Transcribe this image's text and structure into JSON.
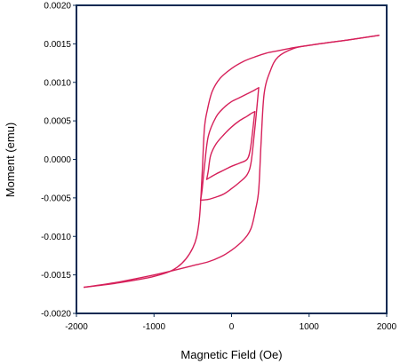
{
  "chart_data": {
    "type": "line",
    "xlabel": "Magnetic Field (Oe)",
    "ylabel": "Moment (emu)",
    "xlim": [
      -2000,
      2000
    ],
    "ylim": [
      -0.002,
      0.002
    ],
    "grid": false,
    "legend": "none",
    "line_color": "#d6205a",
    "frame_color": "#0b2a52",
    "x_ticks": [
      {
        "value": -2000,
        "label": "-2000"
      },
      {
        "value": -1000,
        "label": "-1000"
      },
      {
        "value": 0,
        "label": "0"
      },
      {
        "value": 1000,
        "label": "1000"
      },
      {
        "value": 2000,
        "label": "2000"
      }
    ],
    "y_ticks": [
      {
        "value": 0.002,
        "label": "0.0020"
      },
      {
        "value": 0.0015,
        "label": "0.0015"
      },
      {
        "value": 0.001,
        "label": "0.0010"
      },
      {
        "value": 0.0005,
        "label": "0.0005"
      },
      {
        "value": 0.0,
        "label": "0.0000"
      },
      {
        "value": -0.0005,
        "label": "-0.0005"
      },
      {
        "value": -0.001,
        "label": "-0.0010"
      },
      {
        "value": -0.0015,
        "label": "-0.0015"
      },
      {
        "value": -0.002,
        "label": "-0.0020"
      }
    ],
    "series": [
      {
        "x": [
          -1900,
          -1500,
          -1000,
          -700,
          -500,
          -420,
          -380,
          -350,
          -310,
          -250,
          -150,
          0,
          150,
          300,
          450,
          600,
          800,
          1000,
          1200,
          1500,
          1900
        ],
        "y": [
          -0.00166,
          -0.00161,
          -0.00152,
          -0.0014,
          -0.00115,
          -0.00082,
          -0.0002,
          0.0004,
          0.00065,
          0.00088,
          0.00105,
          0.00118,
          0.00127,
          0.00133,
          0.00138,
          0.00141,
          0.00145,
          0.00148,
          0.00151,
          0.00155,
          0.00161
        ]
      },
      {
        "x": [
          1900,
          1500,
          1200,
          1000,
          800,
          600,
          500,
          420,
          380,
          350,
          310,
          250,
          150,
          0,
          -150,
          -300,
          -500,
          -700,
          -1000,
          -1500,
          -1900
        ],
        "y": [
          0.00161,
          0.00155,
          0.00151,
          0.00148,
          0.00144,
          0.00133,
          0.00115,
          0.00085,
          0.0002,
          -0.0004,
          -0.00065,
          -0.0009,
          -0.00105,
          -0.00118,
          -0.00127,
          -0.00133,
          -0.00138,
          -0.00143,
          -0.0015,
          -0.0016,
          -0.00166
        ]
      },
      {
        "x": [
          -400,
          -380,
          -350,
          -300,
          -200,
          -100,
          0,
          100,
          200,
          280,
          330,
          350
        ],
        "y": [
          -0.00053,
          -0.0004,
          -0.0001,
          0.0003,
          0.00055,
          0.00067,
          0.00075,
          0.0008,
          0.00085,
          0.00089,
          0.00092,
          0.00093
        ]
      },
      {
        "x": [
          350,
          320,
          290,
          250,
          200,
          100,
          0,
          -100,
          -200,
          -300,
          -400
        ],
        "y": [
          0.00093,
          0.0006,
          0.0003,
          -5e-05,
          -0.0002,
          -0.0003,
          -0.00038,
          -0.00045,
          -0.00049,
          -0.00052,
          -0.00053
        ]
      },
      {
        "x": [
          -320,
          -300,
          -270,
          -200,
          -100,
          0,
          100,
          200,
          260,
          300
        ],
        "y": [
          -0.00026,
          -0.00015,
          5e-05,
          0.0002,
          0.00032,
          0.00042,
          0.0005,
          0.00056,
          0.0006,
          0.00062
        ]
      },
      {
        "x": [
          300,
          270,
          240,
          200,
          100,
          0,
          -100,
          -200,
          -270,
          -320
        ],
        "y": [
          0.00062,
          0.00035,
          0.00012,
          0.0,
          -5e-05,
          -9e-05,
          -0.00014,
          -0.00019,
          -0.00023,
          -0.00026
        ]
      }
    ]
  }
}
